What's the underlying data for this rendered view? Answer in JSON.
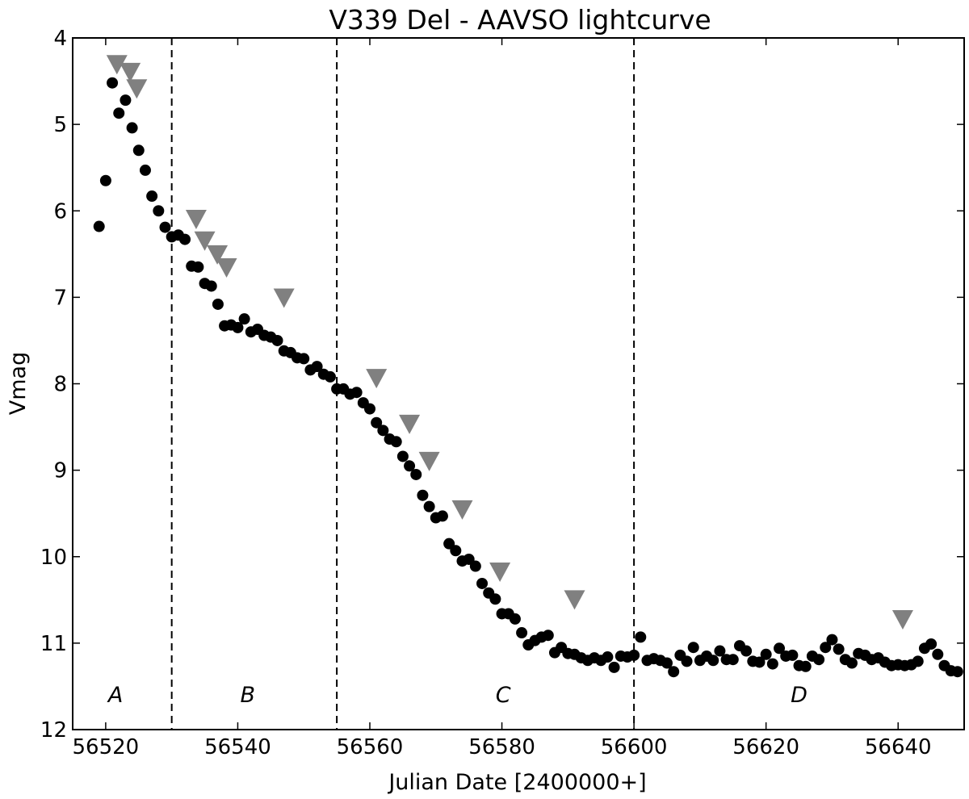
{
  "chart_data": {
    "type": "scatter",
    "title": "V339 Del - AAVSO lightcurve",
    "xlabel": "Julian Date [2400000+]",
    "ylabel": "Vmag",
    "xlim": [
      56515,
      56650
    ],
    "ylim": [
      12,
      4
    ],
    "y_inverted": true,
    "grid": false,
    "xticks": [
      56520,
      56540,
      56560,
      56580,
      56600,
      56620,
      56640
    ],
    "yticks": [
      4,
      5,
      6,
      7,
      8,
      9,
      10,
      11,
      12
    ],
    "phase_boundaries": [
      56530,
      56555,
      56600
    ],
    "phase_labels": [
      {
        "text": "A",
        "x": 56521.5,
        "y": 11.6
      },
      {
        "text": "B",
        "x": 56541.5,
        "y": 11.6
      },
      {
        "text": "C",
        "x": 56580.2,
        "y": 11.6
      },
      {
        "text": "D",
        "x": 56625,
        "y": 11.6
      }
    ],
    "colors": {
      "points": "#000000",
      "upper_limits": "#808080",
      "axes": "#000000"
    },
    "series": [
      {
        "marker": "circle",
        "color": "#000000",
        "points": [
          [
            56519.0,
            6.18
          ],
          [
            56520.0,
            5.65
          ],
          [
            56521.0,
            4.52
          ],
          [
            56522.0,
            4.87
          ],
          [
            56523.0,
            4.72
          ],
          [
            56524.0,
            5.04
          ],
          [
            56525.0,
            5.3
          ],
          [
            56526.0,
            5.53
          ],
          [
            56527.0,
            5.83
          ],
          [
            56528.0,
            6.0
          ],
          [
            56529.0,
            6.19
          ],
          [
            56530.0,
            6.3
          ],
          [
            56531.0,
            6.28
          ],
          [
            56532.0,
            6.33
          ],
          [
            56533.0,
            6.64
          ],
          [
            56534.0,
            6.65
          ],
          [
            56535.0,
            6.84
          ],
          [
            56536.0,
            6.87
          ],
          [
            56537.0,
            7.08
          ],
          [
            56538.0,
            7.33
          ],
          [
            56539.0,
            7.32
          ],
          [
            56540.0,
            7.35
          ],
          [
            56541.0,
            7.25
          ],
          [
            56542.0,
            7.4
          ],
          [
            56543.0,
            7.37
          ],
          [
            56544.0,
            7.44
          ],
          [
            56545.0,
            7.46
          ],
          [
            56546.0,
            7.5
          ],
          [
            56547.0,
            7.62
          ],
          [
            56548.0,
            7.64
          ],
          [
            56549.0,
            7.7
          ],
          [
            56550.0,
            7.71
          ],
          [
            56551.0,
            7.84
          ],
          [
            56552.0,
            7.8
          ],
          [
            56553.0,
            7.89
          ],
          [
            56554.0,
            7.92
          ],
          [
            56555.0,
            8.06
          ],
          [
            56556.0,
            8.06
          ],
          [
            56557.0,
            8.12
          ],
          [
            56558.0,
            8.1
          ],
          [
            56559.0,
            8.22
          ],
          [
            56560.0,
            8.29
          ],
          [
            56561.0,
            8.45
          ],
          [
            56562.0,
            8.54
          ],
          [
            56563.0,
            8.64
          ],
          [
            56564.0,
            8.67
          ],
          [
            56565.0,
            8.84
          ],
          [
            56566.0,
            8.95
          ],
          [
            56567.0,
            9.05
          ],
          [
            56568.0,
            9.29
          ],
          [
            56569.0,
            9.42
          ],
          [
            56570.0,
            9.55
          ],
          [
            56571.0,
            9.53
          ],
          [
            56572.0,
            9.85
          ],
          [
            56573.0,
            9.93
          ],
          [
            56574.0,
            10.05
          ],
          [
            56575.0,
            10.03
          ],
          [
            56576.0,
            10.11
          ],
          [
            56577.0,
            10.31
          ],
          [
            56578.0,
            10.42
          ],
          [
            56579.0,
            10.49
          ],
          [
            56580.0,
            10.66
          ],
          [
            56581.0,
            10.66
          ],
          [
            56582.0,
            10.72
          ],
          [
            56583.0,
            10.88
          ],
          [
            56584.0,
            11.02
          ],
          [
            56585.0,
            10.97
          ],
          [
            56586.0,
            10.93
          ],
          [
            56587.0,
            10.91
          ],
          [
            56588.0,
            11.11
          ],
          [
            56589.0,
            11.05
          ],
          [
            56590.0,
            11.12
          ],
          [
            56591.0,
            11.13
          ],
          [
            56592.0,
            11.17
          ],
          [
            56593.0,
            11.2
          ],
          [
            56594.0,
            11.17
          ],
          [
            56595.0,
            11.2
          ],
          [
            56596.0,
            11.16
          ],
          [
            56597.0,
            11.28
          ],
          [
            56598.0,
            11.15
          ],
          [
            56599.0,
            11.16
          ],
          [
            56600.0,
            11.14
          ],
          [
            56601.0,
            10.93
          ],
          [
            56602.0,
            11.2
          ],
          [
            56603.0,
            11.18
          ],
          [
            56604.0,
            11.2
          ],
          [
            56605.0,
            11.23
          ],
          [
            56606.0,
            11.33
          ],
          [
            56607.0,
            11.14
          ],
          [
            56608.0,
            11.21
          ],
          [
            56609.0,
            11.05
          ],
          [
            56610.0,
            11.2
          ],
          [
            56611.0,
            11.15
          ],
          [
            56612.0,
            11.2
          ],
          [
            56613.0,
            11.09
          ],
          [
            56614.0,
            11.19
          ],
          [
            56615.0,
            11.19
          ],
          [
            56616.0,
            11.03
          ],
          [
            56617.0,
            11.09
          ],
          [
            56618.0,
            11.21
          ],
          [
            56619.0,
            11.22
          ],
          [
            56620.0,
            11.13
          ],
          [
            56621.0,
            11.24
          ],
          [
            56622.0,
            11.06
          ],
          [
            56623.0,
            11.15
          ],
          [
            56624.0,
            11.14
          ],
          [
            56625.0,
            11.26
          ],
          [
            56626.0,
            11.27
          ],
          [
            56627.0,
            11.15
          ],
          [
            56628.0,
            11.19
          ],
          [
            56629.0,
            11.05
          ],
          [
            56630.0,
            10.96
          ],
          [
            56631.0,
            11.07
          ],
          [
            56632.0,
            11.19
          ],
          [
            56633.0,
            11.23
          ],
          [
            56634.0,
            11.12
          ],
          [
            56635.0,
            11.14
          ],
          [
            56636.0,
            11.19
          ],
          [
            56637.0,
            11.17
          ],
          [
            56638.0,
            11.22
          ],
          [
            56639.0,
            11.26
          ],
          [
            56640.0,
            11.25
          ],
          [
            56641.0,
            11.26
          ],
          [
            56642.0,
            11.25
          ],
          [
            56643.0,
            11.21
          ],
          [
            56644.0,
            11.06
          ],
          [
            56645.0,
            11.01
          ],
          [
            56646.0,
            11.13
          ],
          [
            56647.0,
            11.26
          ],
          [
            56648.0,
            11.32
          ],
          [
            56649.0,
            11.33
          ]
        ]
      },
      {
        "marker": "triangle-down",
        "color": "#808080",
        "points": [
          [
            56521.7,
            4.31
          ],
          [
            56523.7,
            4.4
          ],
          [
            56524.7,
            4.59
          ],
          [
            56533.7,
            6.1
          ],
          [
            56535.0,
            6.35
          ],
          [
            56536.9,
            6.51
          ],
          [
            56538.3,
            6.66
          ],
          [
            56547.0,
            7.01
          ],
          [
            56561.0,
            7.94
          ],
          [
            56566.0,
            8.47
          ],
          [
            56569.0,
            8.9
          ],
          [
            56574.0,
            9.46
          ],
          [
            56579.7,
            10.18
          ],
          [
            56591.0,
            10.5
          ],
          [
            56640.7,
            10.73
          ]
        ]
      }
    ]
  }
}
